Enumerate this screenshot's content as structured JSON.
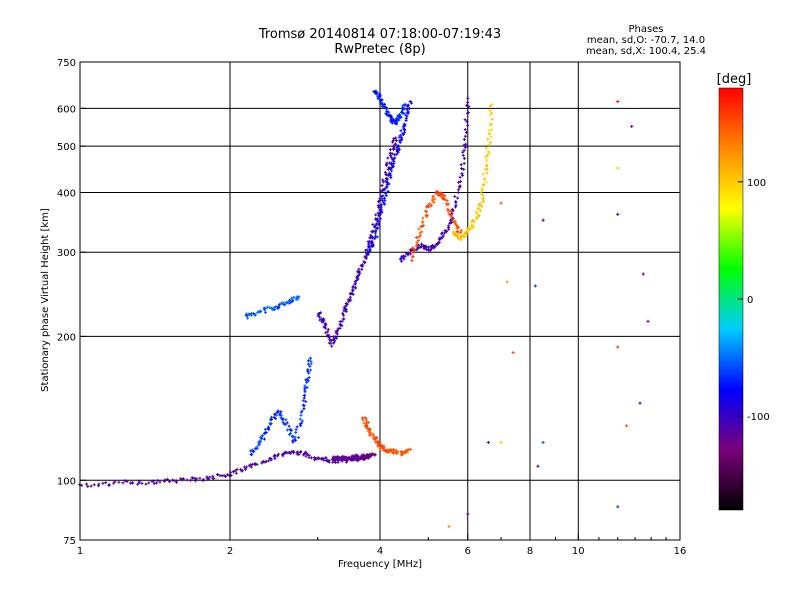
{
  "chart_data": {
    "type": "scatter",
    "title": "Tromsø 20140814 07:18:00-07:19:43",
    "subtitle": "RwPretec (8p)",
    "xlabel": "Frequency [MHz]",
    "ylabel": "Stationary phase Virtual Height [km]",
    "x_scale": "log",
    "y_scale": "log",
    "xlim": [
      1,
      16
    ],
    "ylim": [
      75,
      750
    ],
    "x_ticks": [
      1,
      2,
      4,
      6,
      8,
      10,
      16
    ],
    "x_tick_labels": [
      "1",
      "2",
      "4",
      "6",
      "8",
      "10",
      "16"
    ],
    "x_grid": [
      2,
      4,
      6,
      8,
      10
    ],
    "y_ticks": [
      75,
      100,
      200,
      300,
      400,
      500,
      600,
      750
    ],
    "y_tick_labels": [
      "75",
      "100",
      "200",
      "300",
      "400",
      "500",
      "600",
      "750"
    ],
    "y_grid": [
      100,
      200,
      300,
      400,
      500,
      600
    ],
    "grid": true,
    "legend": {
      "title": "Phases",
      "lines": [
        "mean, sd,O: -70.7, 14.0",
        "mean, sd,X: 100.4, 25.4"
      ],
      "placement": "top-right"
    },
    "colorbar": {
      "label": "[deg]",
      "range": [
        -180,
        180
      ],
      "ticks": [
        100,
        0,
        -100
      ],
      "tick_labels": [
        "100",
        "0",
        "-100"
      ],
      "colormap": [
        "#000000",
        "#7a007a",
        "#0000ff",
        "#00ccff",
        "#00ff00",
        "#ffff00",
        "#ff8800",
        "#ff0000"
      ]
    },
    "traces": [
      {
        "x": [
          1.0,
          1.2,
          1.4,
          1.6,
          1.8,
          2.0,
          2.2,
          2.4,
          2.6,
          2.8,
          3.0,
          3.2,
          3.4,
          3.6,
          3.8
        ],
        "y": [
          97,
          99,
          99,
          100,
          101,
          103,
          107,
          111,
          114,
          114,
          111,
          110,
          110,
          111,
          112
        ],
        "phase": -110
      },
      {
        "x": [
          2.2,
          2.3,
          2.4,
          2.5,
          2.6,
          2.7,
          2.8,
          2.85,
          2.9
        ],
        "y": [
          113,
          120,
          130,
          140,
          130,
          120,
          140,
          160,
          180
        ],
        "phase": -65
      },
      {
        "x": [
          3.0,
          3.1,
          3.2,
          3.3,
          3.4,
          3.5,
          3.6,
          3.7,
          3.8,
          3.9,
          4.0,
          4.1,
          4.2,
          4.3
        ],
        "y": [
          225,
          210,
          192,
          205,
          225,
          245,
          265,
          285,
          310,
          340,
          380,
          430,
          480,
          520
        ],
        "phase": -105
      },
      {
        "x": [
          3.8,
          3.9,
          4.0,
          4.1,
          4.2,
          4.3,
          4.4,
          4.5,
          4.6
        ],
        "y": [
          300,
          320,
          360,
          400,
          440,
          480,
          520,
          560,
          620
        ],
        "phase": -80
      },
      {
        "x": [
          3.9,
          4.0,
          4.1,
          4.2,
          4.3,
          4.4,
          4.5
        ],
        "y": [
          650,
          630,
          600,
          570,
          560,
          580,
          610
        ],
        "phase": -70
      },
      {
        "x": [
          4.4,
          4.6,
          4.8,
          5.0,
          5.2,
          5.4,
          5.6,
          5.8,
          5.9,
          6.0
        ],
        "y": [
          290,
          300,
          310,
          305,
          310,
          330,
          360,
          420,
          500,
          630
        ],
        "phase": -105
      },
      {
        "x": [
          4.6,
          4.8,
          5.0,
          5.2,
          5.4,
          5.6,
          5.8
        ],
        "y": [
          290,
          330,
          370,
          400,
          390,
          350,
          330
        ],
        "phase": 150
      },
      {
        "x": [
          5.6,
          5.8,
          6.0,
          6.2,
          6.4,
          6.5,
          6.6,
          6.7
        ],
        "y": [
          330,
          320,
          330,
          350,
          380,
          430,
          500,
          610
        ],
        "phase": 100
      },
      {
        "x": [
          3.7,
          3.8,
          3.9,
          4.0,
          4.1,
          4.2,
          4.4,
          4.6
        ],
        "y": [
          135,
          128,
          122,
          118,
          116,
          115,
          114,
          116
        ],
        "phase": 150
      },
      {
        "x": [
          3.2,
          3.3,
          3.4,
          3.5,
          3.6,
          3.7,
          3.8,
          3.9
        ],
        "y": [
          111,
          111,
          111,
          111,
          112,
          112,
          112,
          113
        ],
        "phase": -120
      },
      {
        "x": [
          2.15,
          2.3,
          2.45,
          2.6,
          2.75
        ],
        "y": [
          220,
          225,
          230,
          235,
          242
        ],
        "phase": -55
      }
    ],
    "scatter_points": [
      {
        "x": 7.0,
        "y": 380,
        "phase": 150
      },
      {
        "x": 7.2,
        "y": 260,
        "phase": 120
      },
      {
        "x": 7.4,
        "y": 185,
        "phase": 150
      },
      {
        "x": 7.0,
        "y": 120,
        "phase": 100
      },
      {
        "x": 6.6,
        "y": 120,
        "phase": -110
      },
      {
        "x": 6.0,
        "y": 85,
        "phase": -110
      },
      {
        "x": 5.5,
        "y": 80,
        "phase": 130
      },
      {
        "x": 8.5,
        "y": 350,
        "phase": -110
      },
      {
        "x": 8.2,
        "y": 255,
        "phase": -60
      },
      {
        "x": 8.5,
        "y": 120,
        "phase": -55
      },
      {
        "x": 8.3,
        "y": 107,
        "phase": -120
      },
      {
        "x": 12.0,
        "y": 620,
        "phase": 170
      },
      {
        "x": 12.8,
        "y": 550,
        "phase": -120
      },
      {
        "x": 12.0,
        "y": 450,
        "phase": 100
      },
      {
        "x": 12.0,
        "y": 360,
        "phase": -100
      },
      {
        "x": 12.0,
        "y": 190,
        "phase": 160
      },
      {
        "x": 13.5,
        "y": 270,
        "phase": -130
      },
      {
        "x": 13.8,
        "y": 215,
        "phase": -130
      },
      {
        "x": 12.5,
        "y": 130,
        "phase": 150
      },
      {
        "x": 13.3,
        "y": 145,
        "phase": -110
      },
      {
        "x": 12.0,
        "y": 88,
        "phase": -60
      }
    ]
  }
}
